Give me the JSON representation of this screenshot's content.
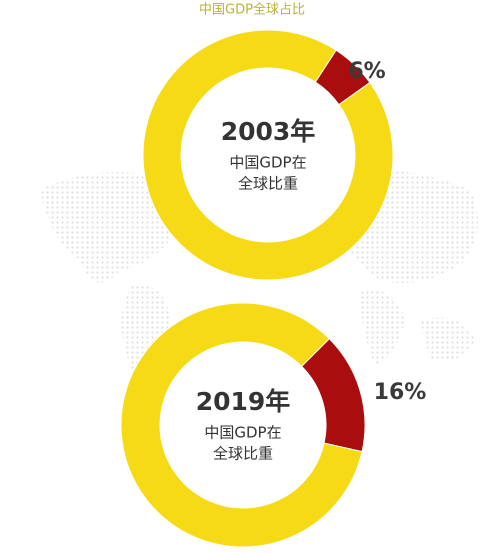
{
  "title": "中国GDP全球占比",
  "chart_data": [
    {
      "type": "donut",
      "center_title": "2003年",
      "center_text": [
        "中国GDP在",
        "全球比重"
      ],
      "values": [
        6,
        94
      ],
      "value_labels": [
        "6%",
        null
      ],
      "colors": [
        "#a90d0d",
        "#f6da16"
      ]
    },
    {
      "type": "donut",
      "center_title": "2019年",
      "center_text": [
        "中国GDP在",
        "全球比重"
      ],
      "values": [
        16,
        84
      ],
      "value_labels": [
        "16%",
        null
      ],
      "colors": [
        "#a90d0d",
        "#f6da16"
      ]
    }
  ]
}
